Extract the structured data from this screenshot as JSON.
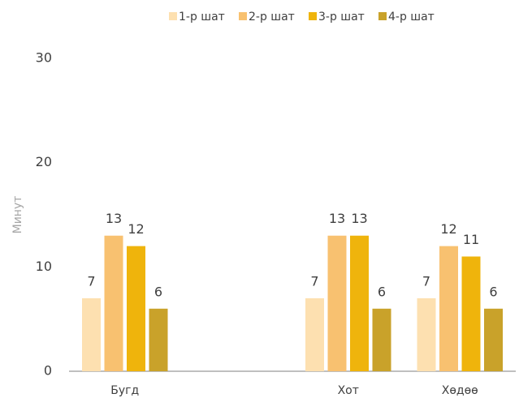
{
  "chart_data": {
    "type": "bar",
    "y_label": "Минут",
    "categories": [
      "Бугд",
      null,
      "Хот",
      "Хөдөө"
    ],
    "series": [
      {
        "name": "1-р шат",
        "color": "#fde0b0",
        "values": [
          7,
          null,
          7,
          7
        ]
      },
      {
        "name": "2-р шат",
        "color": "#f8c170",
        "values": [
          13,
          null,
          13,
          12
        ]
      },
      {
        "name": "3-р шат",
        "color": "#efb40c",
        "values": [
          12,
          null,
          13,
          11
        ]
      },
      {
        "name": "4-р шат",
        "color": "#c9a22a",
        "values": [
          6,
          null,
          6,
          6
        ]
      }
    ],
    "ylim": [
      0,
      30
    ],
    "yticks": [
      0,
      10,
      20,
      30
    ],
    "grid": false,
    "legend": "top"
  }
}
